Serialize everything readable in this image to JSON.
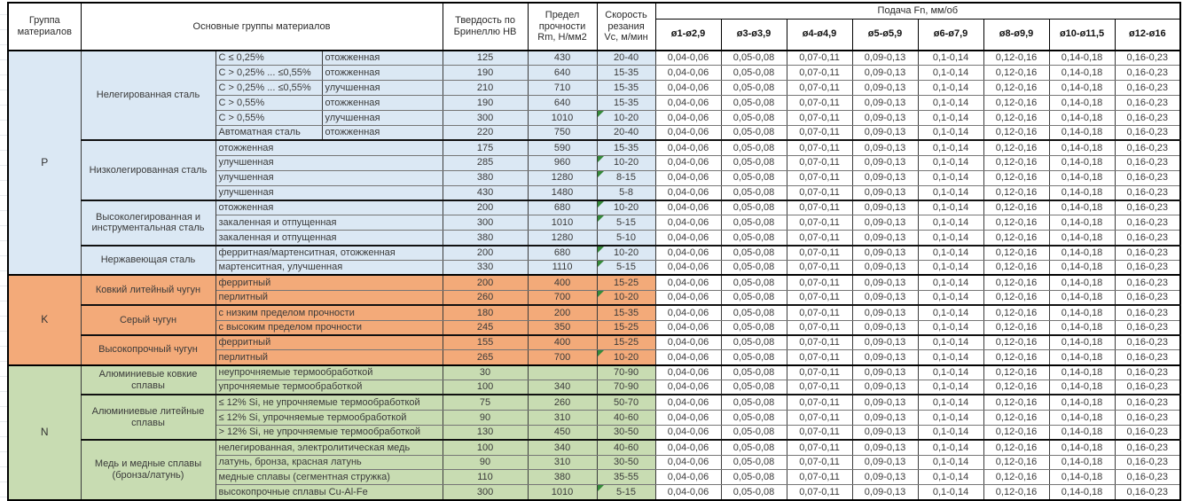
{
  "header": {
    "group_col": "Группа материалов",
    "materials_col": "Основные группы материалов",
    "hardness_col": "Твердость по Бринеллю HB",
    "strength_col": "Предел прочности Rm, Н/мм2",
    "speed_col": "Скорость резания Vc, м/мин",
    "feed_title": "Подача Fn, мм/об",
    "feed_cols": [
      "ø1-ø2,9",
      "ø3-ø3,9",
      "ø4-ø4,9",
      "ø5-ø5,9",
      "ø6-ø7,9",
      "ø8-ø9,9",
      "ø10-ø11,5",
      "ø12-ø16"
    ]
  },
  "feed_values": [
    "0,04-0,06",
    "0,05-0,08",
    "0,07-0,11",
    "0,09-0,13",
    "0,1-0,14",
    "0,12-0,16",
    "0,14-0,18",
    "0,16-0,23"
  ],
  "colors": {
    "p_group": "#dbe8f4",
    "k_group": "#f3aa79",
    "n_group": "#c8dcb2",
    "feed_bg": "#ffffff",
    "marker": "#358a3a",
    "border": "#000000"
  },
  "groups": [
    {
      "code": "P",
      "color": "#dbe8f4",
      "families": [
        {
          "name": "Нелегированная сталь",
          "rows": [
            {
              "sub1": "C ≤ 0,25%",
              "sub2": "отожженная",
              "hb": "125",
              "rm": "430",
              "vc": "20-40",
              "note": false
            },
            {
              "sub1": "C > 0,25% ... ≤0,55%",
              "sub2": "отожженная",
              "hb": "190",
              "rm": "640",
              "vc": "15-35",
              "note": false
            },
            {
              "sub1": "C > 0,25% ... ≤0,55%",
              "sub2": "улучшенная",
              "hb": "210",
              "rm": "710",
              "vc": "15-35",
              "note": false
            },
            {
              "sub1": "C > 0,55%",
              "sub2": "отожженная",
              "hb": "190",
              "rm": "640",
              "vc": "15-35",
              "note": false
            },
            {
              "sub1": "C > 0,55%",
              "sub2": "улучшенная",
              "hb": "300",
              "rm": "1010",
              "vc": "10-20",
              "note": true
            },
            {
              "sub1": "Автоматная сталь",
              "sub2": "отожженная",
              "hb": "220",
              "rm": "750",
              "vc": "20-40",
              "note": false
            }
          ]
        },
        {
          "name": "Низколегированная сталь",
          "rows": [
            {
              "sub": "отожженная",
              "hb": "175",
              "rm": "590",
              "vc": "15-35",
              "note": false
            },
            {
              "sub": "улучшенная",
              "hb": "285",
              "rm": "960",
              "vc": "10-20",
              "note": true
            },
            {
              "sub": "улучшенная",
              "hb": "380",
              "rm": "1280",
              "vc": "8-15",
              "note": true
            },
            {
              "sub": "улучшенная",
              "hb": "430",
              "rm": "1480",
              "vc": "5-8",
              "note": false
            }
          ]
        },
        {
          "name": "Высоколегированная и инструментальная сталь",
          "rows": [
            {
              "sub": "отожженная",
              "hb": "200",
              "rm": "680",
              "vc": "10-20",
              "note": true
            },
            {
              "sub": "закаленная и отпущенная",
              "hb": "300",
              "rm": "1010",
              "vc": "5-15",
              "note": true
            },
            {
              "sub": "закаленная и отпущенная",
              "hb": "380",
              "rm": "1280",
              "vc": "5-10",
              "note": false
            }
          ]
        },
        {
          "name": "Нержавеющая сталь",
          "rows": [
            {
              "sub": "ферритная/мартенситная, отожженная",
              "hb": "200",
              "rm": "680",
              "vc": "10-20",
              "note": true
            },
            {
              "sub": "мартенситная, улучшенная",
              "hb": "330",
              "rm": "1110",
              "vc": "5-15",
              "note": true
            }
          ]
        }
      ]
    },
    {
      "code": "K",
      "color": "#f3aa79",
      "families": [
        {
          "name": "Ковкий литейный чугун",
          "rows": [
            {
              "sub": "ферритный",
              "hb": "200",
              "rm": "400",
              "vc": "15-25",
              "note": false
            },
            {
              "sub": "перлитный",
              "hb": "260",
              "rm": "700",
              "vc": "10-20",
              "note": true
            }
          ]
        },
        {
          "name": "Серый чугун",
          "rows": [
            {
              "sub": "с низким пределом прочности",
              "hb": "180",
              "rm": "200",
              "vc": "15-35",
              "note": false
            },
            {
              "sub": "с высоким пределом прочности",
              "hb": "245",
              "rm": "350",
              "vc": "15-25",
              "note": false
            }
          ]
        },
        {
          "name": "Высокопрочный чугун",
          "rows": [
            {
              "sub": "ферритный",
              "hb": "155",
              "rm": "400",
              "vc": "15-25",
              "note": false
            },
            {
              "sub": "перлитный",
              "hb": "265",
              "rm": "700",
              "vc": "10-20",
              "note": true
            }
          ]
        }
      ]
    },
    {
      "code": "N",
      "color": "#c8dcb2",
      "families": [
        {
          "name": "Алюминиевые ковкие сплавы",
          "rows": [
            {
              "sub": "неупрочняемые термообработкой",
              "hb": "30",
              "rm": "",
              "vc": "70-90",
              "note": false
            },
            {
              "sub": "упрочняемые термообработкой",
              "hb": "100",
              "rm": "340",
              "vc": "70-90",
              "note": false
            }
          ]
        },
        {
          "name": "Алюминиевые литейные сплавы",
          "rows": [
            {
              "sub": "≤ 12% Si, не упрочняемые термообработкой",
              "hb": "75",
              "rm": "260",
              "vc": "50-70",
              "note": false
            },
            {
              "sub": "≤ 12% Si, упрочняемые термообработкой",
              "hb": "90",
              "rm": "310",
              "vc": "40-60",
              "note": false
            },
            {
              "sub": "> 12% Si, не упрочняемые термообработкой",
              "hb": "130",
              "rm": "450",
              "vc": "30-50",
              "note": false
            }
          ]
        },
        {
          "name": "Медь и медные сплавы (бронза/латунь)",
          "rows": [
            {
              "sub": "нелегированная, электролитическая медь",
              "hb": "100",
              "rm": "340",
              "vc": "40-60",
              "note": false
            },
            {
              "sub": "латунь, бронза, красная латунь",
              "hb": "90",
              "rm": "310",
              "vc": "30-50",
              "note": false
            },
            {
              "sub": "медные сплавы (сегментная стружка)",
              "hb": "110",
              "rm": "380",
              "vc": "35-55",
              "note": false
            },
            {
              "sub": "высокопрочные сплавы Cu-Al-Fe",
              "hb": "300",
              "rm": "1010",
              "vc": "5-15",
              "note": true
            }
          ]
        }
      ]
    }
  ]
}
